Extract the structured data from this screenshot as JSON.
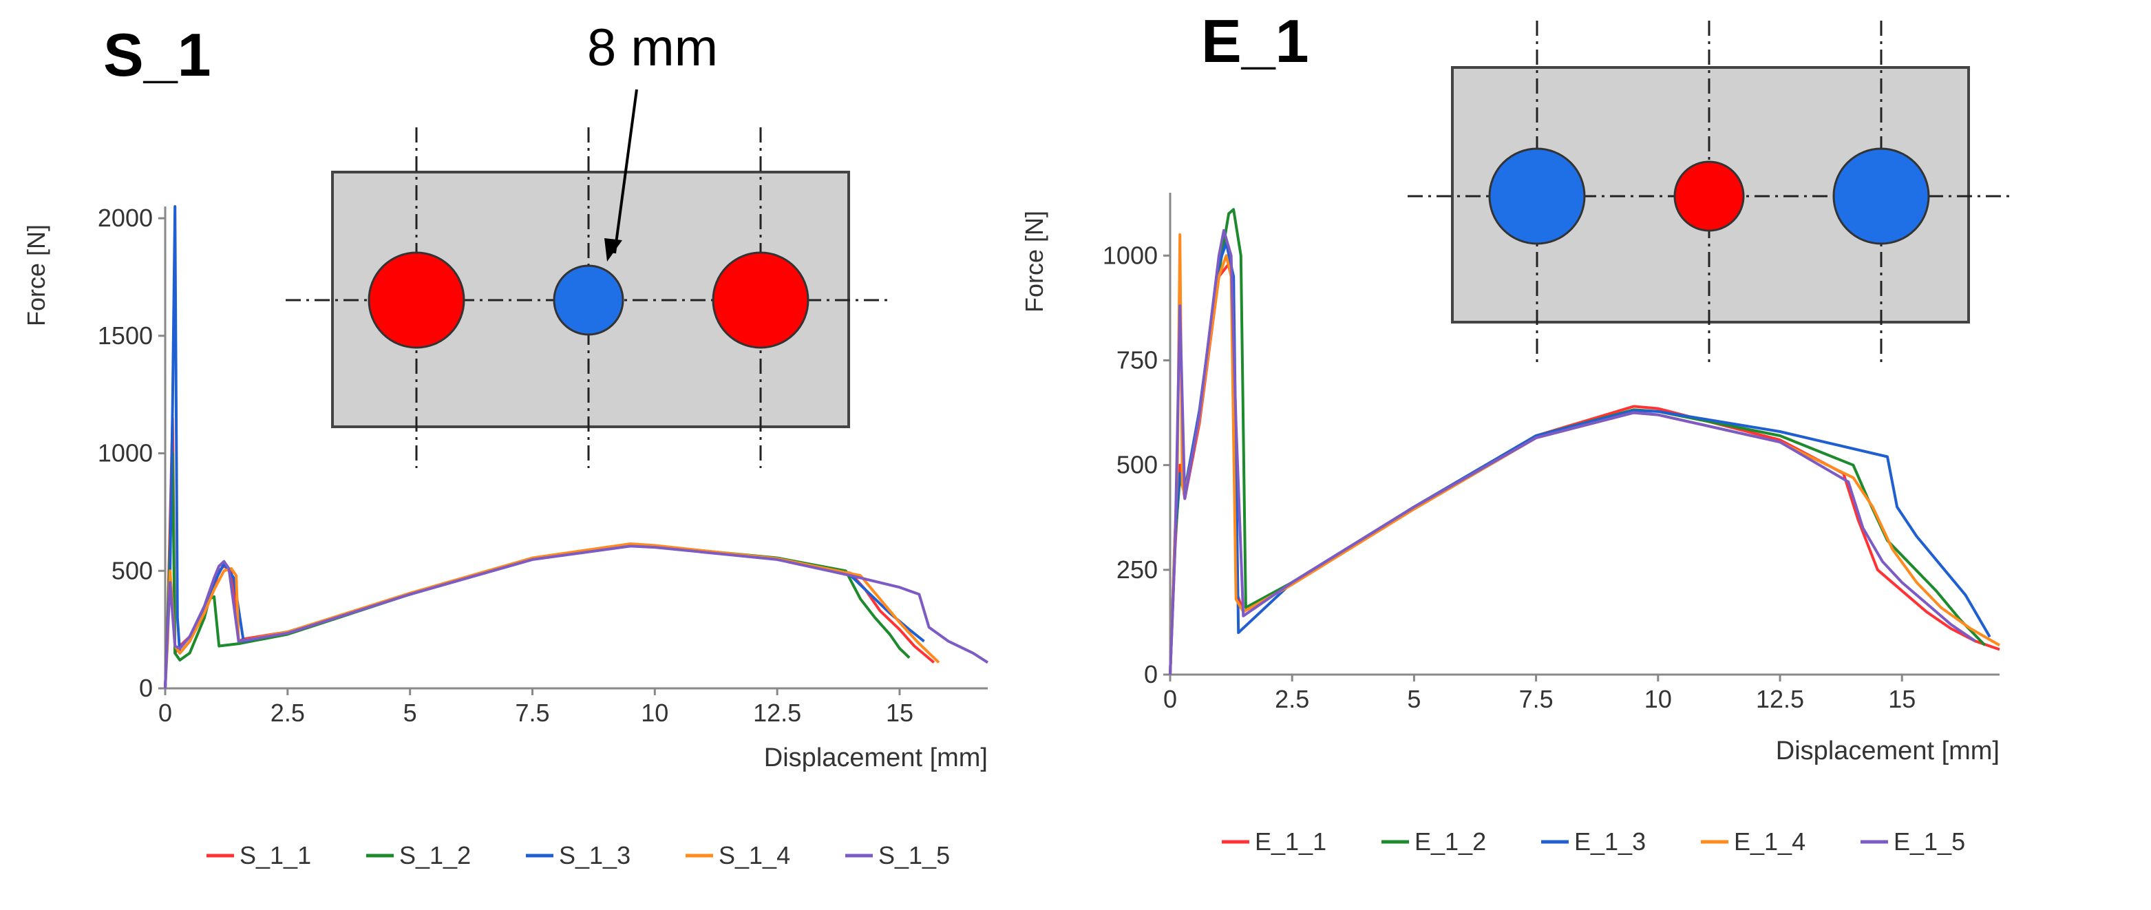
{
  "chart_data": [
    {
      "type": "line",
      "title": "S_1",
      "annotation": "8 mm",
      "xlabel": "Displacement [mm]",
      "ylabel": "Force [N]",
      "xlim": [
        0,
        16.8
      ],
      "ylim": [
        0,
        2050
      ],
      "xticks": [
        0,
        2.5,
        5,
        7.5,
        10,
        12.5,
        15
      ],
      "yticks": [
        0,
        500,
        1000,
        1500,
        2000
      ],
      "xtick_labels": [
        "0",
        "2.5",
        "5",
        "7.5",
        "10",
        "12.5",
        "15"
      ],
      "ytick_labels": [
        "0",
        "500",
        "1000",
        "1500",
        "2000"
      ],
      "legend_position": "bottom",
      "inset": {
        "description_shapes": [
          "red-hole",
          "blue-hole",
          "red-hole"
        ],
        "colors": {
          "outer": "#ff0000",
          "center": "#0066ff",
          "plate": "#d0d0d0"
        }
      },
      "series": [
        {
          "name": "S_1_1",
          "color": "#ff3333",
          "x": [
            0,
            0.05,
            0.1,
            0.15,
            0.2,
            0.3,
            0.5,
            0.8,
            1.0,
            1.1,
            1.2,
            1.35,
            1.5,
            1.6,
            2.5,
            5,
            7.5,
            9.5,
            10,
            12.5,
            14,
            14.3,
            14.6,
            15,
            15.3,
            15.7
          ],
          "y": [
            0,
            300,
            700,
            1150,
            150,
            180,
            220,
            330,
            430,
            500,
            520,
            500,
            200,
            210,
            240,
            400,
            550,
            610,
            605,
            550,
            490,
            420,
            330,
            250,
            180,
            110
          ]
        },
        {
          "name": "S_1_2",
          "color": "#1e8a2e",
          "x": [
            0,
            0.05,
            0.1,
            0.15,
            0.2,
            0.3,
            0.5,
            0.8,
            0.9,
            1.0,
            1.1,
            1.5,
            2.5,
            5,
            7.5,
            9.5,
            10,
            12.5,
            13.9,
            14.2,
            14.5,
            14.8,
            15.0,
            15.2
          ],
          "y": [
            0,
            280,
            600,
            1000,
            150,
            120,
            150,
            300,
            380,
            390,
            180,
            190,
            230,
            400,
            550,
            610,
            605,
            555,
            500,
            380,
            300,
            230,
            170,
            130
          ]
        },
        {
          "name": "S_1_3",
          "color": "#1f5fd1",
          "x": [
            0,
            0.1,
            0.15,
            0.2,
            0.25,
            0.3,
            0.5,
            0.8,
            1.0,
            1.2,
            1.4,
            1.6,
            2.5,
            5,
            7.5,
            9.5,
            10,
            12.5,
            14.0,
            14.4,
            14.8,
            15.2,
            15.5
          ],
          "y": [
            0,
            500,
            1200,
            2050,
            300,
            150,
            200,
            330,
            450,
            530,
            470,
            200,
            240,
            400,
            550,
            610,
            605,
            550,
            480,
            400,
            320,
            250,
            200
          ]
        },
        {
          "name": "S_1_4",
          "color": "#ff8a1e",
          "x": [
            0,
            0.05,
            0.1,
            0.2,
            0.3,
            0.5,
            0.8,
            1.0,
            1.2,
            1.35,
            1.45,
            1.5,
            2.5,
            5,
            7.5,
            9.5,
            10,
            12.5,
            14.2,
            14.6,
            15.0,
            15.4,
            15.8
          ],
          "y": [
            0,
            200,
            500,
            180,
            150,
            200,
            320,
            420,
            500,
            510,
            480,
            200,
            240,
            405,
            555,
            615,
            608,
            552,
            480,
            380,
            280,
            190,
            110
          ]
        },
        {
          "name": "S_1_5",
          "color": "#7d5bc4",
          "x": [
            0,
            0.05,
            0.1,
            0.2,
            0.3,
            0.5,
            0.8,
            1.0,
            1.1,
            1.2,
            1.3,
            1.5,
            2.5,
            5,
            7.5,
            9.5,
            10,
            12.5,
            14.0,
            15.0,
            15.4,
            15.6,
            16.0,
            16.5,
            16.8
          ],
          "y": [
            0,
            250,
            450,
            180,
            170,
            220,
            350,
            470,
            520,
            540,
            510,
            200,
            235,
            400,
            548,
            605,
            600,
            548,
            480,
            430,
            400,
            260,
            200,
            150,
            110
          ]
        }
      ]
    },
    {
      "type": "line",
      "title": "E_1",
      "xlabel": "Displacement [mm]",
      "ylabel": "Force [N]",
      "xlim": [
        0,
        17
      ],
      "ylim": [
        0,
        1150
      ],
      "xticks": [
        0,
        2.5,
        5,
        7.5,
        10,
        12.5,
        15
      ],
      "yticks": [
        0,
        250,
        500,
        750,
        1000
      ],
      "xtick_labels": [
        "0",
        "2.5",
        "5",
        "7.5",
        "10",
        "12.5",
        "15"
      ],
      "ytick_labels": [
        "0",
        "250",
        "500",
        "750",
        "1000"
      ],
      "legend_position": "bottom",
      "inset": {
        "description_shapes": [
          "blue-hole",
          "red-hole",
          "blue-hole"
        ],
        "colors": {
          "outer": "#0066ff",
          "center": "#ff0000",
          "plate": "#d0d0d0"
        }
      },
      "series": [
        {
          "name": "E_1_1",
          "color": "#ff3333",
          "x": [
            0,
            0.1,
            0.2,
            0.3,
            0.6,
            1.0,
            1.2,
            1.3,
            1.35,
            1.5,
            2.5,
            5,
            7.5,
            9.5,
            10,
            12.5,
            13.8,
            14.1,
            14.5,
            15.0,
            15.5,
            16.0,
            16.5,
            17.0
          ],
          "y": [
            0,
            300,
            500,
            420,
            600,
            950,
            980,
            950,
            200,
            150,
            220,
            400,
            570,
            640,
            635,
            560,
            480,
            370,
            250,
            200,
            150,
            110,
            80,
            60
          ]
        },
        {
          "name": "E_1_2",
          "color": "#1e8a2e",
          "x": [
            0,
            0.1,
            0.2,
            0.3,
            0.6,
            1.0,
            1.2,
            1.3,
            1.45,
            1.55,
            2.5,
            5,
            7.5,
            9.5,
            10,
            12.5,
            14.0,
            14.3,
            14.7,
            15.2,
            15.7,
            16.2,
            16.7
          ],
          "y": [
            0,
            320,
            470,
            430,
            620,
            960,
            1100,
            1110,
            1000,
            160,
            220,
            400,
            570,
            632,
            628,
            570,
            500,
            420,
            320,
            260,
            200,
            130,
            70
          ]
        },
        {
          "name": "E_1_3",
          "color": "#1f5fd1",
          "x": [
            0,
            0.1,
            0.2,
            0.3,
            0.6,
            1.0,
            1.15,
            1.3,
            1.4,
            2.5,
            5,
            7.5,
            9.5,
            10,
            12.5,
            14.7,
            14.9,
            15.3,
            15.8,
            16.3,
            16.8
          ],
          "y": [
            0,
            340,
            480,
            440,
            630,
            980,
            1030,
            950,
            100,
            220,
            400,
            570,
            630,
            628,
            580,
            520,
            400,
            330,
            260,
            190,
            90
          ]
        },
        {
          "name": "E_1_4",
          "color": "#ff8a1e",
          "x": [
            0,
            0.15,
            0.2,
            0.25,
            0.3,
            0.6,
            1.0,
            1.15,
            1.25,
            1.35,
            1.5,
            2.5,
            5,
            7.5,
            9.5,
            10,
            12.5,
            14.0,
            14.4,
            14.8,
            15.3,
            15.8,
            16.4,
            17.0
          ],
          "y": [
            0,
            500,
            1050,
            450,
            430,
            610,
            950,
            1000,
            950,
            180,
            150,
            215,
            395,
            565,
            625,
            620,
            555,
            470,
            400,
            300,
            220,
            160,
            110,
            70
          ]
        },
        {
          "name": "E_1_5",
          "color": "#7d5bc4",
          "x": [
            0,
            0.1,
            0.2,
            0.3,
            0.6,
            1.0,
            1.1,
            1.25,
            1.35,
            1.5,
            2.5,
            5,
            7.5,
            9.5,
            10,
            12.5,
            13.9,
            14.2,
            14.6,
            15.0,
            15.5,
            16.0,
            16.5
          ],
          "y": [
            0,
            300,
            880,
            420,
            620,
            1000,
            1060,
            1000,
            600,
            140,
            220,
            400,
            565,
            625,
            620,
            555,
            460,
            350,
            270,
            220,
            170,
            120,
            80
          ]
        }
      ]
    }
  ]
}
